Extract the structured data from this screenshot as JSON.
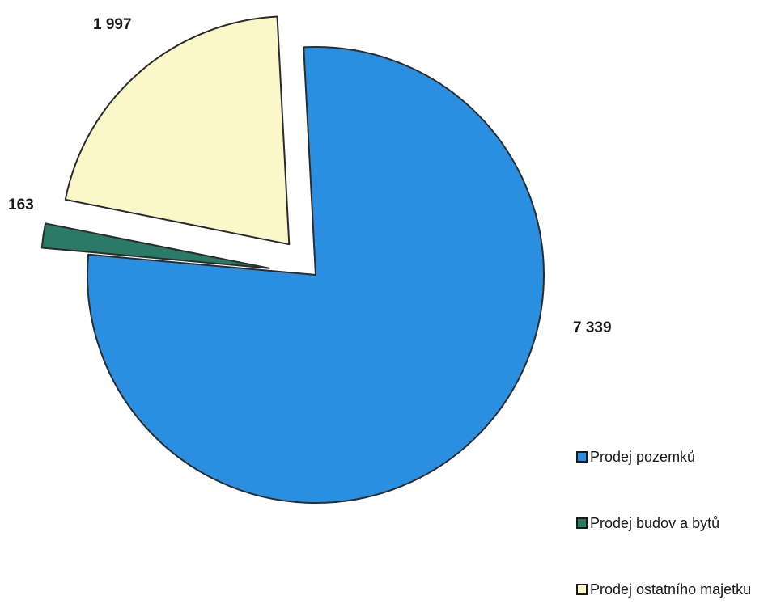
{
  "chart_data": {
    "type": "pie",
    "categories": [
      "Prodej pozemků",
      "Prodej budov a bytů",
      "Prodej ostatního majetku"
    ],
    "values": [
      7339,
      163,
      1997
    ],
    "value_labels": [
      "7 339",
      "163",
      "1 997"
    ],
    "colors": [
      "#2a8fe0",
      "#2a7a66",
      "#fbf7c8"
    ],
    "legend": "bottom-right"
  }
}
